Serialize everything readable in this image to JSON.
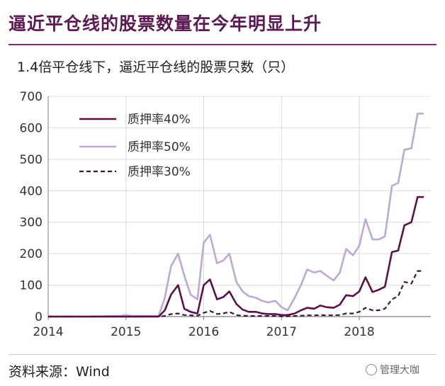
{
  "header": {
    "title": "逼近平仓线的股票数量在今年明显上升",
    "subtitle": "1.4倍平仓线下，逼近平仓线的股票只数（只）"
  },
  "footer": {
    "source": "资料来源：Wind",
    "watermark": "管理大咖"
  },
  "colors": {
    "title": "#5b1a52",
    "series_40": "#5b1049",
    "series_50": "#bda9d1",
    "series_30": "#3a1a36",
    "grid": "#d9d9d9",
    "axis": "#7f7f7f"
  },
  "chart_data": {
    "type": "line",
    "xlabel": "",
    "ylabel": "",
    "ylim": [
      0,
      700
    ],
    "xlim": [
      2014,
      2018.92
    ],
    "yticks": [
      0,
      100,
      200,
      300,
      400,
      500,
      600,
      700
    ],
    "xticks": [
      2014,
      2015,
      2016,
      2017,
      2018
    ],
    "grid": true,
    "legend_position": "top-left",
    "x": [
      2014.0,
      2014.5,
      2014.92,
      2015.0,
      2015.08,
      2015.25,
      2015.42,
      2015.5,
      2015.58,
      2015.67,
      2015.75,
      2015.83,
      2015.92,
      2016.0,
      2016.08,
      2016.17,
      2016.25,
      2016.33,
      2016.42,
      2016.5,
      2016.58,
      2016.67,
      2016.75,
      2016.83,
      2016.92,
      2017.0,
      2017.08,
      2017.17,
      2017.25,
      2017.33,
      2017.42,
      2017.5,
      2017.58,
      2017.67,
      2017.75,
      2017.83,
      2017.92,
      2018.0,
      2018.08,
      2018.17,
      2018.25,
      2018.33,
      2018.42,
      2018.5,
      2018.58,
      2018.67,
      2018.75,
      2018.83
    ],
    "series": [
      {
        "name": "质押率40%",
        "style": "solid",
        "values": [
          0,
          0,
          0,
          0,
          0,
          0,
          0,
          20,
          70,
          100,
          25,
          15,
          10,
          100,
          118,
          55,
          62,
          80,
          40,
          22,
          15,
          15,
          10,
          8,
          8,
          5,
          5,
          10,
          20,
          28,
          25,
          35,
          30,
          28,
          38,
          68,
          65,
          80,
          125,
          78,
          85,
          95,
          205,
          210,
          290,
          300,
          380,
          380
        ]
      },
      {
        "name": "质押率50%",
        "style": "solid",
        "values": [
          0,
          0,
          2,
          5,
          2,
          2,
          2,
          60,
          160,
          200,
          130,
          70,
          55,
          235,
          260,
          170,
          178,
          200,
          110,
          80,
          65,
          60,
          50,
          45,
          50,
          30,
          20,
          60,
          100,
          150,
          140,
          145,
          130,
          115,
          140,
          215,
          195,
          225,
          310,
          245,
          245,
          255,
          415,
          425,
          530,
          535,
          645,
          645
        ]
      },
      {
        "name": "质押率30%",
        "style": "dashed",
        "values": [
          0,
          0,
          0,
          0,
          0,
          0,
          0,
          2,
          8,
          10,
          5,
          4,
          3,
          12,
          18,
          8,
          10,
          15,
          5,
          3,
          2,
          2,
          2,
          2,
          2,
          1,
          1,
          2,
          3,
          4,
          4,
          5,
          4,
          4,
          5,
          10,
          10,
          15,
          28,
          20,
          20,
          25,
          55,
          65,
          110,
          105,
          145,
          145
        ]
      }
    ]
  }
}
